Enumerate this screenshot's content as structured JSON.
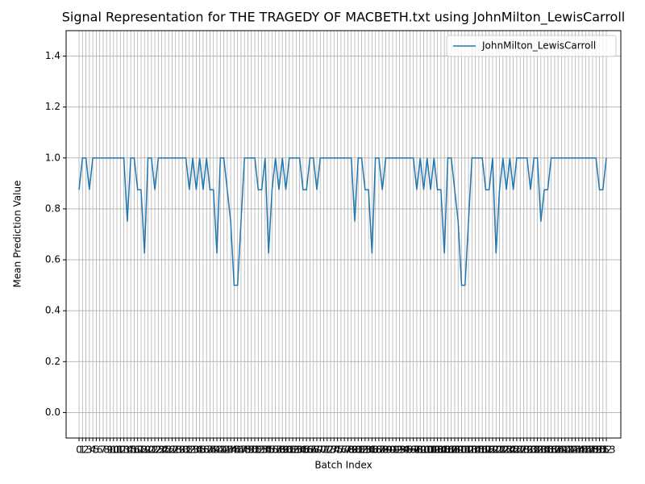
{
  "chart_data": {
    "type": "line",
    "title": "Signal Representation for THE TRAGEDY OF MACBETH.txt using JohnMilton_LewisCarroll",
    "x_label": "Batch Index",
    "y_label": "Mean Prediction Value",
    "x": [
      0,
      1,
      2,
      3,
      4,
      5,
      6,
      7,
      8,
      9,
      10,
      11,
      12,
      13,
      14,
      15,
      16,
      17,
      18,
      19,
      20,
      21,
      22,
      23,
      24,
      25,
      26,
      27,
      28,
      29,
      30,
      31,
      32,
      33,
      34,
      35,
      36,
      37,
      38,
      39,
      40,
      41,
      42,
      43,
      44,
      45,
      46,
      47,
      48,
      49,
      50,
      51,
      52,
      53,
      54,
      55,
      56,
      57,
      58,
      59,
      60,
      61,
      62,
      63,
      64,
      65,
      66,
      67,
      68,
      69,
      70,
      71,
      72,
      73,
      74,
      75,
      76,
      77,
      78,
      79,
      80,
      81,
      82,
      83,
      84,
      85,
      86,
      87,
      88,
      89,
      90,
      91,
      92,
      93,
      94,
      95,
      96,
      97,
      98,
      99,
      100,
      101,
      102,
      103,
      104,
      105,
      106,
      107,
      108,
      109,
      110,
      111,
      112,
      113,
      114,
      115,
      116,
      117,
      118,
      119,
      120,
      121,
      122,
      123,
      124,
      125,
      126,
      127,
      128,
      129,
      130,
      131,
      132,
      133,
      134,
      135,
      136,
      137,
      138,
      139,
      140,
      141,
      142,
      143,
      144,
      145,
      146,
      147,
      148,
      149,
      150,
      151,
      152,
      153
    ],
    "series": [
      {
        "name": "JohnMilton_LewisCarroll",
        "color": "#1f77b4",
        "values": [
          0.875,
          1,
          1,
          0.875,
          1,
          1,
          1,
          1,
          1,
          1,
          1,
          1,
          1,
          1,
          0.75,
          1,
          1,
          0.875,
          0.875,
          0.625,
          1,
          1,
          0.875,
          1,
          1,
          1,
          1,
          1,
          1,
          1,
          1,
          1,
          0.875,
          1,
          0.875,
          1,
          0.875,
          1,
          0.875,
          0.875,
          0.625,
          1,
          1,
          0.875,
          0.75,
          0.5,
          0.5,
          0.75,
          1,
          1,
          1,
          1,
          0.875,
          0.875,
          1,
          0.625,
          0.875,
          1,
          0.875,
          1,
          0.875,
          1,
          1,
          1,
          1,
          0.875,
          0.875,
          1,
          1,
          0.875,
          1,
          1,
          1,
          1,
          1,
          1,
          1,
          1,
          1,
          1,
          0.75,
          1,
          1,
          0.875,
          0.875,
          0.625,
          1,
          1,
          0.875,
          1,
          1,
          1,
          1,
          1,
          1,
          1,
          1,
          1,
          0.875,
          1,
          0.875,
          1,
          0.875,
          1,
          0.875,
          0.875,
          0.625,
          1,
          1,
          0.875,
          0.75,
          0.5,
          0.5,
          0.75,
          1,
          1,
          1,
          1,
          0.875,
          0.875,
          1,
          0.625,
          0.875,
          1,
          0.875,
          1,
          0.875,
          1,
          1,
          1,
          1,
          0.875,
          1,
          1,
          0.75,
          0.875,
          0.875,
          1,
          1,
          1,
          1,
          1,
          1,
          1,
          1,
          1,
          1,
          1,
          1,
          1,
          1,
          0.875,
          0.875,
          1
        ]
      }
    ],
    "xlim": [
      -3.75,
      157.2
    ],
    "ylim": [
      -0.1,
      1.5
    ],
    "xticks": [
      0,
      1,
      2,
      3,
      4,
      5,
      6,
      7,
      8,
      9,
      10,
      11,
      12,
      13,
      14,
      15,
      16,
      17,
      18,
      19,
      20,
      21,
      22,
      23,
      24,
      25,
      26,
      27,
      28,
      29,
      30,
      31,
      32,
      33,
      34,
      35,
      36,
      37,
      38,
      39,
      40,
      41,
      42,
      43,
      44,
      45,
      46,
      47,
      48,
      49,
      50,
      51,
      52,
      53,
      54,
      55,
      56,
      57,
      58,
      59,
      60,
      61,
      62,
      63,
      64,
      65,
      66,
      67,
      68,
      69,
      70,
      71,
      72,
      73,
      74,
      75,
      76,
      77,
      78,
      79,
      80,
      81,
      82,
      83,
      84,
      85,
      86,
      87,
      88,
      89,
      90,
      91,
      92,
      93,
      94,
      95,
      96,
      97,
      98,
      99,
      100,
      101,
      102,
      103,
      104,
      105,
      106,
      107,
      108,
      109,
      110,
      111,
      112,
      113,
      114,
      115,
      116,
      117,
      118,
      119,
      120,
      121,
      122,
      123,
      124,
      125,
      126,
      127,
      128,
      129,
      130,
      131,
      132,
      133,
      134,
      135,
      136,
      137,
      138,
      139,
      140,
      141,
      142,
      143,
      144,
      145,
      146,
      147,
      148,
      149,
      150,
      151,
      152,
      153
    ],
    "yticks": [
      {
        "value": 0,
        "label": "0.0"
      },
      0.2,
      0.4,
      0.6,
      0.8,
      {
        "value": 1,
        "label": "1.0"
      },
      1.2,
      1.4
    ],
    "grid": true,
    "legend": "upper-right"
  }
}
